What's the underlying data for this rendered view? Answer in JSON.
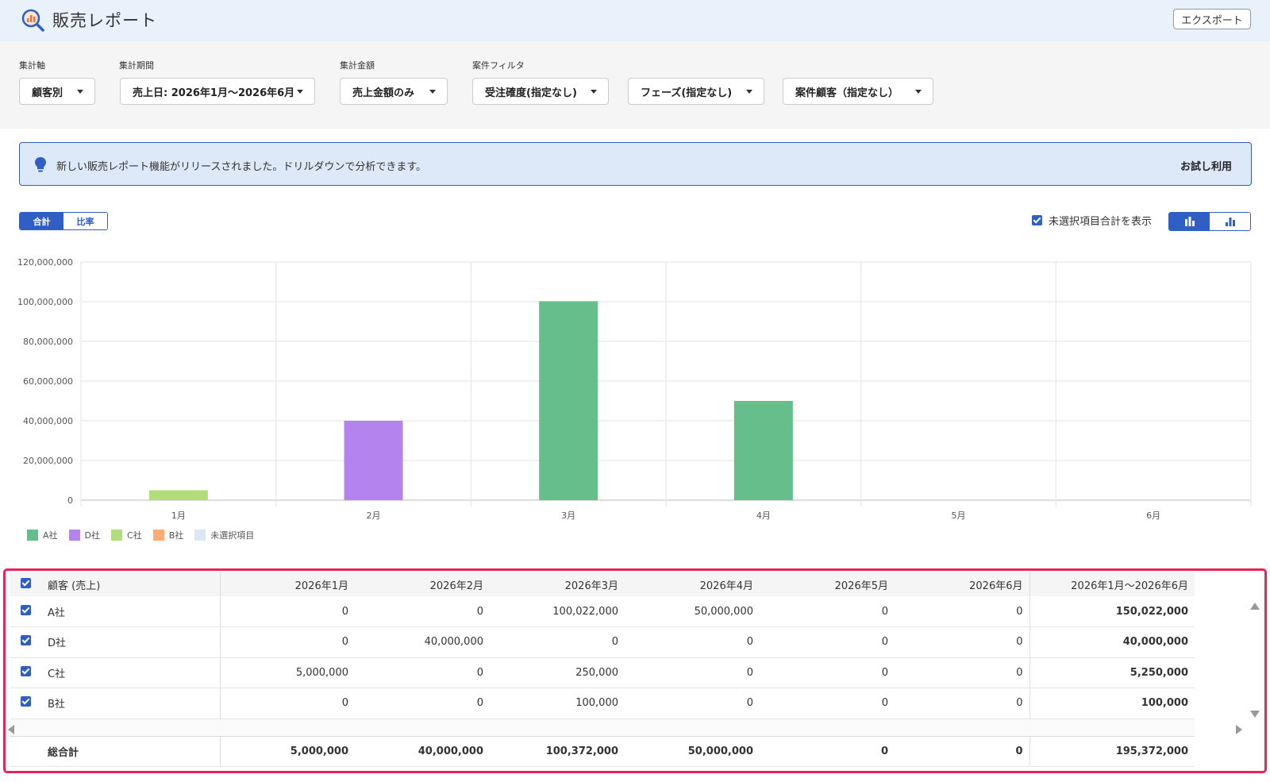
{
  "header": {
    "title": "販売レポート",
    "export_label": "エクスポート"
  },
  "filters": {
    "axis": {
      "label": "集計軸",
      "value": "顧客別"
    },
    "period": {
      "label": "集計期間",
      "value": "売上日: 2026年1月～2026年6月"
    },
    "amount": {
      "label": "集計金額",
      "value": "売上金額のみ"
    },
    "case_filter": {
      "label": "案件フィルタ",
      "certainty": "受注確度(指定なし)",
      "phase": "フェーズ(指定なし)",
      "customer": "案件顧客（指定なし）"
    }
  },
  "notice": {
    "text": "新しい販売レポート機能がリリースされました。ドリルダウンで分析できます。",
    "action": "お試し利用"
  },
  "view": {
    "total_label": "合計",
    "ratio_label": "比率",
    "show_unselected_label": "未選択項目合計を表示"
  },
  "colors": {
    "A社": "#66bf8a",
    "D社": "#b483ee",
    "C社": "#b3dc7b",
    "B社": "#ffaa77",
    "未選択項目": "#dbe6f7",
    "accent": "#2f5ec4",
    "highlight": "#e8235a"
  },
  "chart_data": {
    "type": "bar",
    "categories": [
      "1月",
      "2月",
      "3月",
      "4月",
      "5月",
      "6月"
    ],
    "series": [
      {
        "name": "A社",
        "values": [
          0,
          0,
          100022000,
          50000000,
          0,
          0
        ]
      },
      {
        "name": "D社",
        "values": [
          0,
          40000000,
          0,
          0,
          0,
          0
        ]
      },
      {
        "name": "C社",
        "values": [
          5000000,
          0,
          250000,
          0,
          0,
          0
        ]
      },
      {
        "name": "B社",
        "values": [
          0,
          0,
          100000,
          0,
          0,
          0
        ]
      },
      {
        "name": "未選択項目",
        "values": [
          0,
          0,
          0,
          0,
          0,
          0
        ]
      }
    ],
    "yticks": [
      "0",
      "20,000,000",
      "40,000,000",
      "60,000,000",
      "80,000,000",
      "100,000,000",
      "120,000,000"
    ],
    "ylim": [
      0,
      120000000
    ],
    "legend": "bottom-left",
    "grid": true
  },
  "table": {
    "columns": [
      "顧客 (売上)",
      "2026年1月",
      "2026年2月",
      "2026年3月",
      "2026年4月",
      "2026年5月",
      "2026年6月",
      "2026年1月～2026年6月"
    ],
    "rows": [
      {
        "name": "A社",
        "values": [
          "0",
          "0",
          "100,022,000",
          "50,000,000",
          "0",
          "0"
        ],
        "total": "150,022,000"
      },
      {
        "name": "D社",
        "values": [
          "0",
          "40,000,000",
          "0",
          "0",
          "0",
          "0"
        ],
        "total": "40,000,000"
      },
      {
        "name": "C社",
        "values": [
          "5,000,000",
          "0",
          "250,000",
          "0",
          "0",
          "0"
        ],
        "total": "5,250,000"
      },
      {
        "name": "B社",
        "values": [
          "0",
          "0",
          "100,000",
          "0",
          "0",
          "0"
        ],
        "total": "100,000"
      }
    ],
    "grand_total": {
      "label": "総合計",
      "values": [
        "5,000,000",
        "40,000,000",
        "100,372,000",
        "50,000,000",
        "0",
        "0"
      ],
      "total": "195,372,000"
    }
  }
}
